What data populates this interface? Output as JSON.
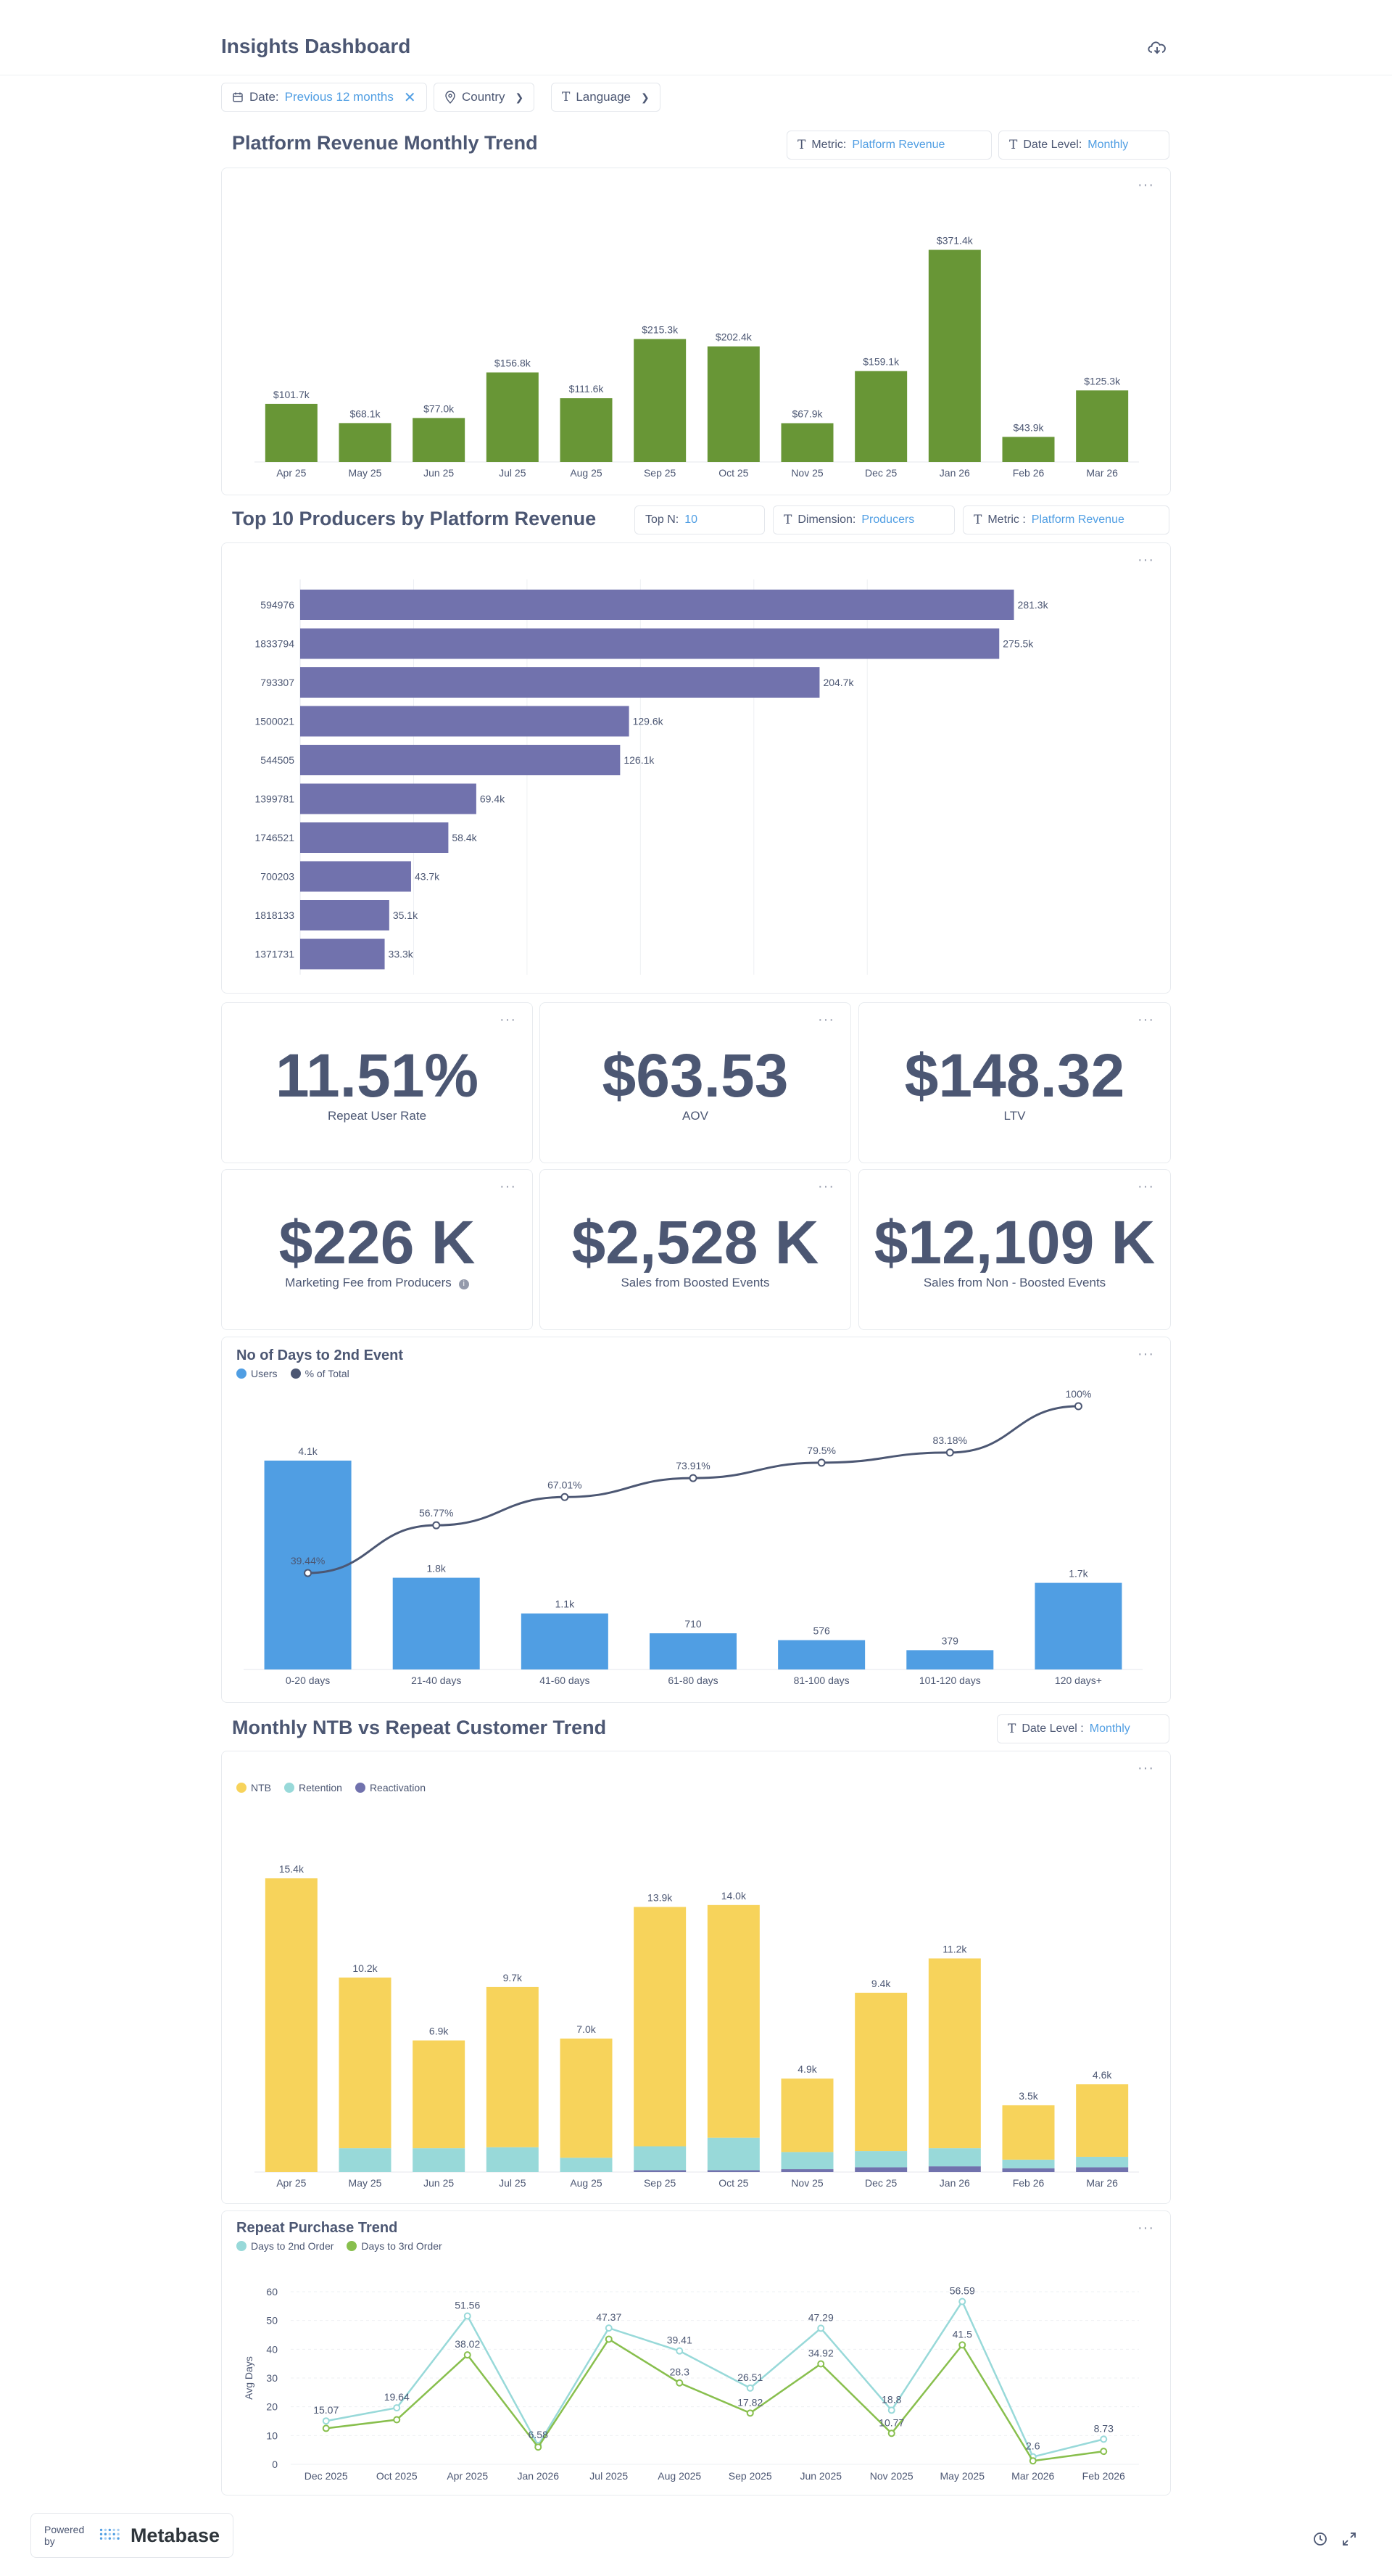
{
  "header": {
    "title": "Insights Dashboard"
  },
  "filters": {
    "date_key": "Date:",
    "date_value": "Previous 12 months",
    "country": "Country",
    "language": "Language"
  },
  "revenue_section": {
    "title": "Platform Revenue Monthly Trend",
    "metric_key": "Metric:",
    "metric_value": "Platform Revenue",
    "date_level_key": "Date Level:",
    "date_level_value": "Monthly"
  },
  "producers_section": {
    "title": "Top 10 Producers by Platform Revenue",
    "topn_key": "Top N:",
    "topn_value": "10",
    "dimension_key": "Dimension:",
    "dimension_value": "Producers",
    "metric_key": "Metric :",
    "metric_value": "Platform Revenue"
  },
  "kpis": [
    {
      "value": "11.51%",
      "label": "Repeat User Rate"
    },
    {
      "value": "$63.53",
      "label": "AOV"
    },
    {
      "value": "$148.32",
      "label": "LTV"
    },
    {
      "value": "$226 K",
      "label": "Marketing Fee from Producers"
    },
    {
      "value": "$2,528 K",
      "label": "Sales from Boosted Events"
    },
    {
      "value": "$12,109 K",
      "label": "Sales from Non - Boosted Events"
    }
  ],
  "days_section": {
    "title": "No of Days to 2nd Event"
  },
  "ntb_section": {
    "title": "Monthly NTB vs Repeat Customer Trend",
    "date_level_key": "Date Level :",
    "date_level_value": "Monthly"
  },
  "repeat_section": {
    "title": "Repeat Purchase Trend"
  },
  "footer": {
    "powered_by": "Powered by",
    "brand": "Metabase"
  },
  "colors": {
    "green": "#689636",
    "purple": "#7172ad",
    "blue": "#509ee3",
    "navy": "#4c5773",
    "yellow": "#f7d35b",
    "teal": "#98d9d9",
    "accent": "#509ee3"
  },
  "chart_data": [
    {
      "type": "bar",
      "title": "Platform Revenue Monthly Trend",
      "categories": [
        "Apr 25",
        "May 25",
        "Jun 25",
        "Jul 25",
        "Aug 25",
        "Sep 25",
        "Oct 25",
        "Nov 25",
        "Dec 25",
        "Jan 26",
        "Feb 26",
        "Mar 26"
      ],
      "values": [
        101.7,
        68.1,
        77.0,
        156.8,
        111.6,
        215.3,
        202.4,
        67.9,
        159.1,
        371.4,
        43.9,
        125.3
      ],
      "labels": [
        "$101.7k",
        "$68.1k",
        "$77.0k",
        "$156.8k",
        "$111.6k",
        "$215.3k",
        "$202.4k",
        "$67.9k",
        "$159.1k",
        "$371.4k",
        "$43.9k",
        "$125.3k"
      ],
      "ylim": [
        0,
        400
      ],
      "color": "#689636"
    },
    {
      "type": "bar",
      "orientation": "horizontal",
      "title": "Top 10 Producers by Platform Revenue",
      "categories": [
        "594976",
        "1833794",
        "793307",
        "1500021",
        "544505",
        "1399781",
        "1746521",
        "700203",
        "1818133",
        "1371731"
      ],
      "values": [
        281.3,
        275.5,
        204.7,
        129.6,
        126.1,
        69.4,
        58.4,
        43.7,
        35.1,
        33.3
      ],
      "labels": [
        "281.3k",
        "275.5k",
        "204.7k",
        "129.6k",
        "126.1k",
        "69.4k",
        "58.4k",
        "43.7k",
        "35.1k",
        "33.3k"
      ],
      "xlim": [
        0,
        300
      ],
      "color": "#7172ad"
    },
    {
      "type": "bar",
      "title": "No of Days to 2nd Event",
      "categories": [
        "0-20 days",
        "21-40 days",
        "41-60 days",
        "61-80 days",
        "81-100 days",
        "101-120 days",
        "120 days+"
      ],
      "series": [
        {
          "name": "Users",
          "type": "bar",
          "values": [
            4100,
            1800,
            1100,
            710,
            576,
            379,
            1700
          ],
          "labels": [
            "4.1k",
            "1.8k",
            "1.1k",
            "710",
            "576",
            "379",
            "1.7k"
          ],
          "color": "#509ee3"
        },
        {
          "name": "% of Total",
          "type": "line",
          "values": [
            39.44,
            56.77,
            67.01,
            73.91,
            79.5,
            83.18,
            100
          ],
          "labels": [
            "39.44%",
            "56.77%",
            "67.01%",
            "73.91%",
            "79.5%",
            "83.18%",
            "100%"
          ],
          "color": "#4c5773"
        }
      ],
      "legend": "top-left"
    },
    {
      "type": "bar",
      "stacked": true,
      "title": "Monthly NTB vs Repeat Customer Trend",
      "categories": [
        "Apr 25",
        "May 25",
        "Jun 25",
        "Jul 25",
        "Aug 25",
        "Sep 25",
        "Oct 25",
        "Nov 25",
        "Dec 25",
        "Jan 26",
        "Feb 26",
        "Mar 26"
      ],
      "totals": [
        "15.4k",
        "10.2k",
        "6.9k",
        "9.7k",
        "7.0k",
        "13.9k",
        "14.0k",
        "4.9k",
        "9.4k",
        "11.2k",
        "3.5k",
        "4.6k"
      ],
      "series": [
        {
          "name": "NTB",
          "values": [
            15400,
            8950,
            5650,
            8400,
            6250,
            12550,
            12200,
            3850,
            8300,
            9950,
            2850,
            3800
          ],
          "color": "#f7d35b"
        },
        {
          "name": "Retention",
          "values": [
            0,
            1250,
            1250,
            1300,
            750,
            1250,
            1700,
            900,
            850,
            950,
            450,
            550
          ],
          "color": "#98d9d9"
        },
        {
          "name": "Reactivation",
          "values": [
            0,
            0,
            0,
            0,
            0,
            100,
            100,
            150,
            250,
            300,
            200,
            250
          ],
          "color": "#7172ad"
        }
      ],
      "legend": "top-left"
    },
    {
      "type": "line",
      "title": "Repeat Purchase Trend",
      "ylabel": "Avg Days",
      "categories": [
        "Dec 2025",
        "Oct 2025",
        "Apr 2025",
        "Jan 2026",
        "Jul 2025",
        "Aug 2025",
        "Sep 2025",
        "Jun 2025",
        "Nov 2025",
        "May 2025",
        "Mar 2026",
        "Feb 2026"
      ],
      "ylim": [
        0,
        60
      ],
      "yticks": [
        0,
        10,
        20,
        30,
        40,
        50,
        60
      ],
      "series": [
        {
          "name": "Days to 2nd Order",
          "values": [
            15.07,
            19.64,
            51.56,
            6.58,
            47.37,
            39.41,
            26.51,
            47.29,
            18.8,
            56.59,
            2.6,
            8.73
          ],
          "color": "#98d9d9"
        },
        {
          "name": "Days to 3rd Order",
          "values": [
            12.5,
            15.5,
            38.02,
            6.0,
            43.5,
            28.3,
            17.82,
            34.92,
            10.77,
            41.5,
            1.2,
            4.5
          ],
          "color": "#88bf4d"
        }
      ],
      "point_labels": [
        {
          "i": 0,
          "s": 0,
          "text": "15.07"
        },
        {
          "i": 1,
          "s": 0,
          "text": "19.64"
        },
        {
          "i": 2,
          "s": 0,
          "text": "51.56"
        },
        {
          "i": 3,
          "s": 0,
          "text": "6.58"
        },
        {
          "i": 4,
          "s": 0,
          "text": "47.37"
        },
        {
          "i": 5,
          "s": 0,
          "text": "39.41"
        },
        {
          "i": 6,
          "s": 0,
          "text": "26.51"
        },
        {
          "i": 7,
          "s": 0,
          "text": "47.29"
        },
        {
          "i": 8,
          "s": 0,
          "text": "18.8"
        },
        {
          "i": 9,
          "s": 0,
          "text": "56.59"
        },
        {
          "i": 10,
          "s": 0,
          "text": "2.6"
        },
        {
          "i": 11,
          "s": 0,
          "text": "8.73"
        },
        {
          "i": 2,
          "s": 1,
          "text": "38.02"
        },
        {
          "i": 5,
          "s": 1,
          "text": "28.3"
        },
        {
          "i": 6,
          "s": 1,
          "text": "17.82"
        },
        {
          "i": 7,
          "s": 1,
          "text": "34.92"
        },
        {
          "i": 8,
          "s": 1,
          "text": "10.77"
        },
        {
          "i": 9,
          "s": 1,
          "text": "41.5"
        }
      ],
      "legend": "top-left"
    }
  ]
}
